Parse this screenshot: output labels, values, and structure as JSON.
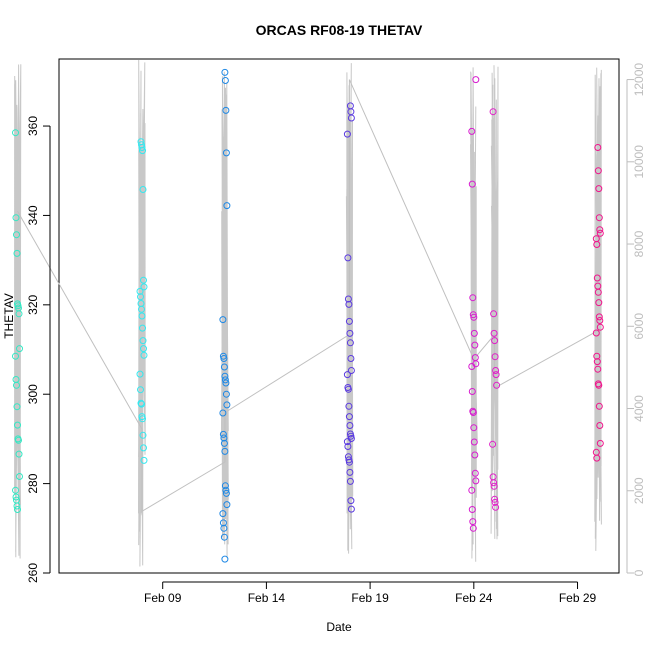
{
  "chart_data": {
    "type": "scatter",
    "title": "ORCAS RF08-19 THETAV",
    "xlabel": "Date",
    "ylabel": "THETAV",
    "x_ticks": [
      "Feb 09",
      "Feb 14",
      "Feb 19",
      "Feb 24",
      "Feb 29"
    ],
    "xlim": [
      "2016-02-04",
      "2016-03-02"
    ],
    "ylim": [
      260,
      375
    ],
    "y_ticks": [
      260,
      280,
      300,
      320,
      340,
      360
    ],
    "y2_ticks": [
      0,
      2000,
      4000,
      6000,
      8000,
      10000,
      12000
    ],
    "y2lim": [
      0,
      12500
    ],
    "y2_color": "#bdbdbd",
    "grid": false,
    "flights": [
      {
        "date": "2016-02-02",
        "color": "#33e8c4",
        "values": [
          358.5,
          339.5,
          335.7,
          331.5,
          320.2,
          319.8,
          319.3,
          318.0,
          310.2,
          308.5,
          303.3,
          302.0,
          297.2,
          293.1,
          290.0,
          289.7,
          286.6,
          281.6,
          278.5,
          277.0,
          276.3,
          275.0,
          274.2
        ]
      },
      {
        "date": "2016-02-08",
        "color": "#33e8f0",
        "values": [
          356.5,
          355.8,
          355.2,
          354.5,
          345.8,
          325.5,
          324.0,
          323.0,
          321.8,
          320.3,
          319.0,
          317.5,
          314.8,
          312.0,
          310.2,
          308.7,
          304.5,
          301.0,
          298.0,
          297.8,
          295.0,
          294.5,
          290.8,
          288.0,
          285.2
        ]
      },
      {
        "date": "2016-02-12",
        "color": "#1e88e5",
        "values": [
          372.0,
          370.2,
          363.5,
          354.0,
          342.2,
          316.7,
          308.5,
          308.0,
          306.1,
          304.0,
          303.2,
          302.5,
          300.0,
          297.6,
          295.8,
          291.0,
          290.2,
          289.0,
          287.2,
          279.5,
          278.5,
          277.8,
          275.3,
          273.3,
          271.2,
          270.0,
          268.0,
          263.1
        ]
      },
      {
        "date": "2016-02-18",
        "color": "#5b3be0",
        "values": [
          364.5,
          363.2,
          361.8,
          358.2,
          330.5,
          321.3,
          320.1,
          316.3,
          313.6,
          311.5,
          308.0,
          305.3,
          304.4,
          301.5,
          301.1,
          297.3,
          295.0,
          293.0,
          291.1,
          290.6,
          290.1,
          289.4,
          288.3,
          286.0,
          285.3,
          284.8,
          282.5,
          280.5,
          276.2,
          274.3
        ]
      },
      {
        "date": "2016-02-24",
        "color": "#d81bd0",
        "values": [
          370.4,
          358.8,
          347.0,
          321.6,
          317.8,
          317.2,
          313.6,
          311.0,
          308.2,
          306.8,
          306.2,
          300.6,
          296.2,
          295.9,
          292.5,
          289.3,
          286.4,
          282.3,
          280.6,
          278.5,
          274.2,
          271.5,
          270.0
        ]
      },
      {
        "date": "2016-02-25",
        "color": "#e01fc8",
        "values": [
          363.2,
          318.0,
          313.6,
          312.0,
          308.4,
          305.3,
          304.4,
          302.0,
          288.8,
          281.5,
          280.2,
          279.4,
          276.5,
          275.8,
          274.7
        ]
      },
      {
        "date": "2016-03-01",
        "color": "#f0148c",
        "values": [
          355.2,
          350.0,
          346.0,
          339.5,
          336.8,
          336.0,
          334.8,
          333.5,
          326.0,
          324.2,
          322.8,
          320.5,
          317.3,
          316.5,
          315.0,
          313.7,
          308.5,
          307.3,
          305.6,
          302.3,
          302.0,
          297.3,
          293.0,
          289.0,
          287.0,
          285.7
        ]
      }
    ],
    "altitude_line": [
      [
        "2016-02-02",
        8800
      ],
      [
        "2016-02-08",
        3500
      ],
      [
        "2016-02-08",
        1500
      ],
      [
        "2016-02-12",
        2700
      ],
      [
        "2016-02-12",
        3900
      ],
      [
        "2016-02-18",
        5800
      ],
      [
        "2016-02-18",
        12000
      ],
      [
        "2016-02-24",
        5200
      ],
      [
        "2016-02-25",
        5800
      ],
      [
        "2016-02-25",
        4500
      ],
      [
        "2016-03-01",
        5900
      ]
    ],
    "altitude_bursts": [
      {
        "date": "2016-02-02",
        "max": 12400,
        "min": 200
      },
      {
        "date": "2016-02-08",
        "max": 12500,
        "min": 150
      },
      {
        "date": "2016-02-12",
        "max": 12200,
        "min": 200
      },
      {
        "date": "2016-02-18",
        "max": 12400,
        "min": 100
      },
      {
        "date": "2016-02-24",
        "max": 12300,
        "min": 200
      },
      {
        "date": "2016-02-25",
        "max": 12400,
        "min": 150
      },
      {
        "date": "2016-03-01",
        "max": 12500,
        "min": 200
      }
    ]
  }
}
